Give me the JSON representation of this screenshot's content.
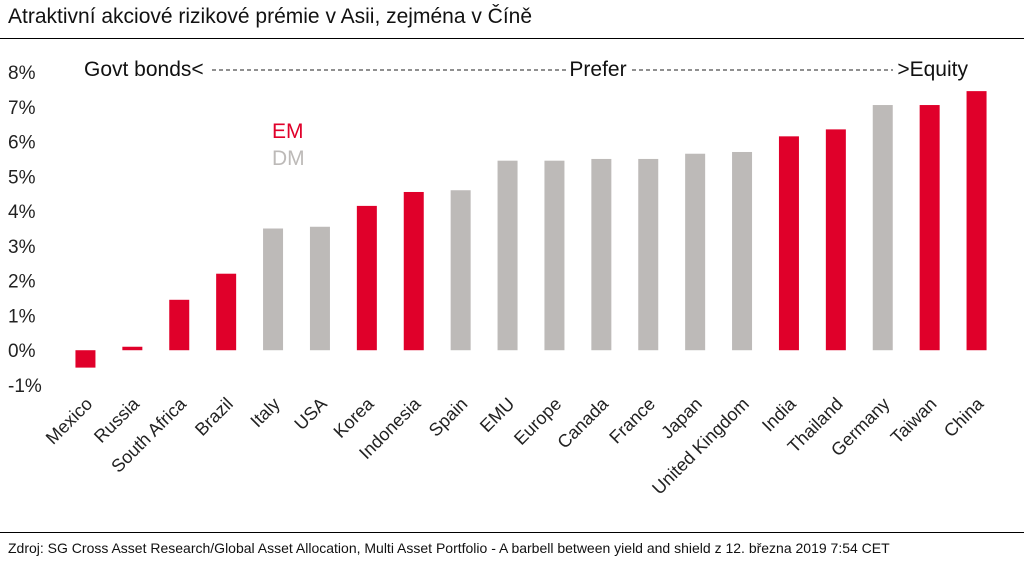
{
  "title": "Atraktivní akciové rizikové prémie v Asii, zejména v Číně",
  "source": "Zdroj: SG Cross Asset Research/Global Asset Allocation, Multi Asset Portfolio - A barbell between yield and shield z 12. března 2019 7:54 CET",
  "colors": {
    "EM": "#e0002a",
    "DM": "#bdbab8"
  },
  "chart_data": {
    "type": "bar",
    "annotation": "Govt bonds<------------------------------------------------Prefer--------------------------------------->Equity",
    "annotation_parts": [
      "Govt bonds<",
      "Prefer",
      ">Equity"
    ],
    "ylim": [
      -1,
      8
    ],
    "yticks": [
      -1,
      0,
      1,
      2,
      3,
      4,
      5,
      6,
      7,
      8
    ],
    "ytick_labels": [
      "-1%",
      "0%",
      "1%",
      "2%",
      "3%",
      "4%",
      "5%",
      "6%",
      "7%",
      "8%"
    ],
    "legend": [
      {
        "name": "EM",
        "color": "#e0002a"
      },
      {
        "name": "DM",
        "color": "#bdbab8"
      }
    ],
    "categories": [
      "Mexico",
      "Russia",
      "South Africa",
      "Brazil",
      "Italy",
      "USA",
      "Korea",
      "Indonesia",
      "Spain",
      "EMU",
      "Europe",
      "Canada",
      "France",
      "Japan",
      "United Kingdom",
      "India",
      "Thailand",
      "Germany",
      "Taiwan",
      "China"
    ],
    "values": [
      -0.5,
      0.1,
      1.45,
      2.2,
      3.5,
      3.55,
      4.15,
      4.55,
      4.6,
      5.45,
      5.45,
      5.5,
      5.5,
      5.65,
      5.7,
      6.15,
      6.35,
      7.05,
      7.05,
      7.45
    ],
    "groups": [
      "EM",
      "EM",
      "EM",
      "EM",
      "DM",
      "DM",
      "EM",
      "EM",
      "DM",
      "DM",
      "DM",
      "DM",
      "DM",
      "DM",
      "DM",
      "EM",
      "EM",
      "DM",
      "EM",
      "EM"
    ]
  }
}
